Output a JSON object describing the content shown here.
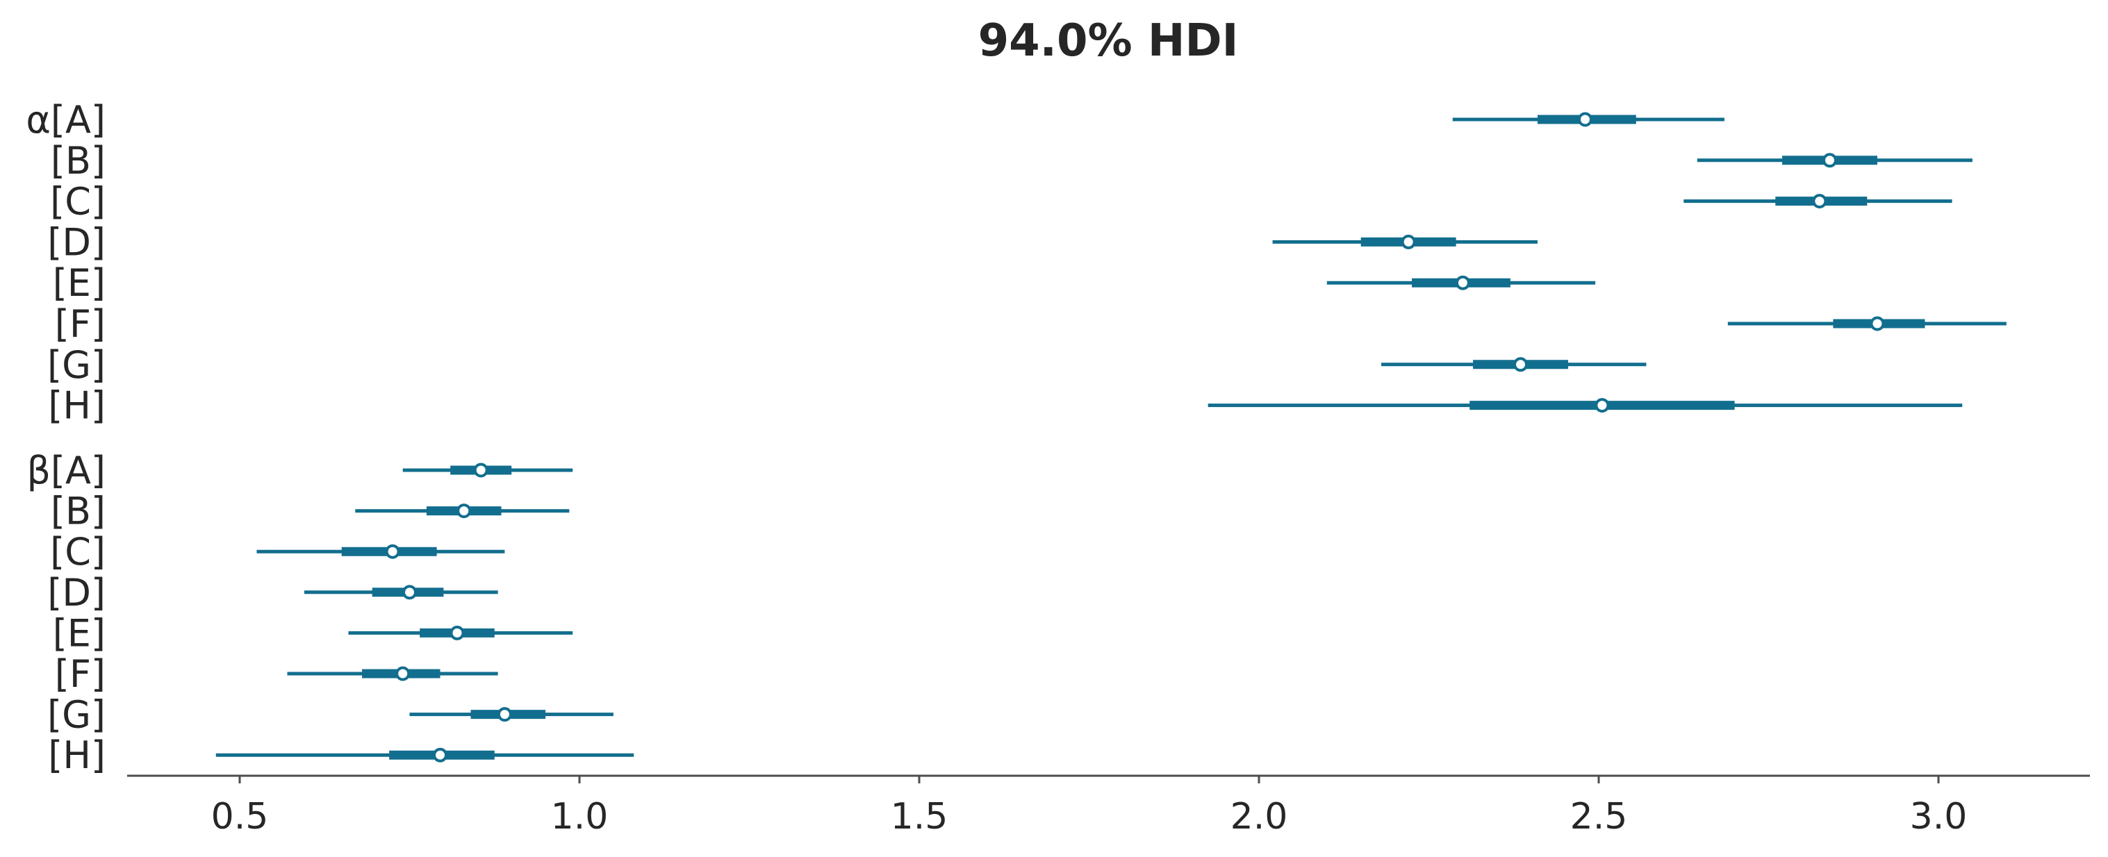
{
  "colors": {
    "series": "#126e8e",
    "text": "#262626",
    "axis": "#4d4d4d",
    "background": "#ffffff"
  },
  "chart_data": {
    "type": "forest",
    "title": "94.0% HDI",
    "xlabel": "",
    "ylabel": "",
    "xlim": [
      0.34,
      3.23
    ],
    "xticks": [
      0.5,
      1.0,
      1.5,
      2.0,
      2.5,
      3.0
    ],
    "xtick_labels": [
      "0.5",
      "1.0",
      "1.5",
      "2.0",
      "2.5",
      "3.0"
    ],
    "grid": false,
    "rows": [
      {
        "label": "α[A]",
        "median": 2.48,
        "hdi_low": 2.285,
        "hdi_high": 2.685,
        "iqr_low": 2.41,
        "iqr_high": 2.555
      },
      {
        "label": "[B]",
        "median": 2.84,
        "hdi_low": 2.645,
        "hdi_high": 3.05,
        "iqr_low": 2.77,
        "iqr_high": 2.91
      },
      {
        "label": "[C]",
        "median": 2.825,
        "hdi_low": 2.625,
        "hdi_high": 3.02,
        "iqr_low": 2.76,
        "iqr_high": 2.895
      },
      {
        "label": "[D]",
        "median": 2.22,
        "hdi_low": 2.02,
        "hdi_high": 2.41,
        "iqr_low": 2.15,
        "iqr_high": 2.29
      },
      {
        "label": "[E]",
        "median": 2.3,
        "hdi_low": 2.1,
        "hdi_high": 2.495,
        "iqr_low": 2.225,
        "iqr_high": 2.37
      },
      {
        "label": "[F]",
        "median": 2.91,
        "hdi_low": 2.69,
        "hdi_high": 3.1,
        "iqr_low": 2.845,
        "iqr_high": 2.98
      },
      {
        "label": "[G]",
        "median": 2.385,
        "hdi_low": 2.18,
        "hdi_high": 2.57,
        "iqr_low": 2.315,
        "iqr_high": 2.455
      },
      {
        "label": "[H]",
        "median": 2.505,
        "hdi_low": 1.925,
        "hdi_high": 3.035,
        "iqr_low": 2.31,
        "iqr_high": 2.7
      },
      {
        "label": "β[A]",
        "median": 0.855,
        "hdi_low": 0.74,
        "hdi_high": 0.99,
        "iqr_low": 0.81,
        "iqr_high": 0.9
      },
      {
        "label": "[B]",
        "median": 0.83,
        "hdi_low": 0.67,
        "hdi_high": 0.985,
        "iqr_low": 0.775,
        "iqr_high": 0.885
      },
      {
        "label": "[C]",
        "median": 0.725,
        "hdi_low": 0.525,
        "hdi_high": 0.89,
        "iqr_low": 0.65,
        "iqr_high": 0.79
      },
      {
        "label": "[D]",
        "median": 0.75,
        "hdi_low": 0.595,
        "hdi_high": 0.88,
        "iqr_low": 0.695,
        "iqr_high": 0.8
      },
      {
        "label": "[E]",
        "median": 0.82,
        "hdi_low": 0.66,
        "hdi_high": 0.99,
        "iqr_low": 0.765,
        "iqr_high": 0.875
      },
      {
        "label": "[F]",
        "median": 0.74,
        "hdi_low": 0.57,
        "hdi_high": 0.88,
        "iqr_low": 0.68,
        "iqr_high": 0.795
      },
      {
        "label": "[G]",
        "median": 0.89,
        "hdi_low": 0.75,
        "hdi_high": 1.05,
        "iqr_low": 0.84,
        "iqr_high": 0.95
      },
      {
        "label": "[H]",
        "median": 0.795,
        "hdi_low": 0.465,
        "hdi_high": 1.08,
        "iqr_low": 0.72,
        "iqr_high": 0.875
      }
    ]
  }
}
